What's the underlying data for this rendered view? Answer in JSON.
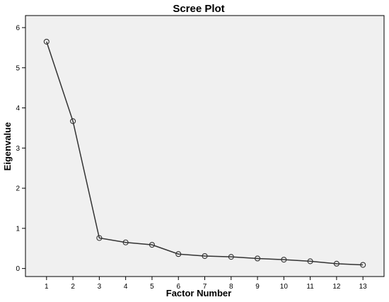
{
  "chart_data": {
    "type": "line",
    "title": "Scree Plot",
    "xlabel": "Factor Number",
    "ylabel": "Eigenvalue",
    "x": [
      1,
      2,
      3,
      4,
      5,
      6,
      7,
      8,
      9,
      10,
      11,
      12,
      13
    ],
    "series": [
      {
        "values": [
          5.65,
          3.67,
          0.76,
          0.65,
          0.59,
          0.36,
          0.31,
          0.29,
          0.25,
          0.22,
          0.18,
          0.12,
          0.09
        ]
      }
    ],
    "xlim": [
      0.2,
      13.8
    ],
    "ylim": [
      -0.2,
      6.3
    ],
    "yticks": [
      0,
      1,
      2,
      3,
      4,
      5,
      6
    ],
    "xticks": [
      1,
      2,
      3,
      4,
      5,
      6,
      7,
      8,
      9,
      10,
      11,
      12,
      13
    ],
    "grid": false,
    "legend": "none",
    "colors": {
      "plot_background": "#f0f0f0",
      "line": "#333333",
      "marker": "#333333",
      "frame": "#000000"
    }
  }
}
